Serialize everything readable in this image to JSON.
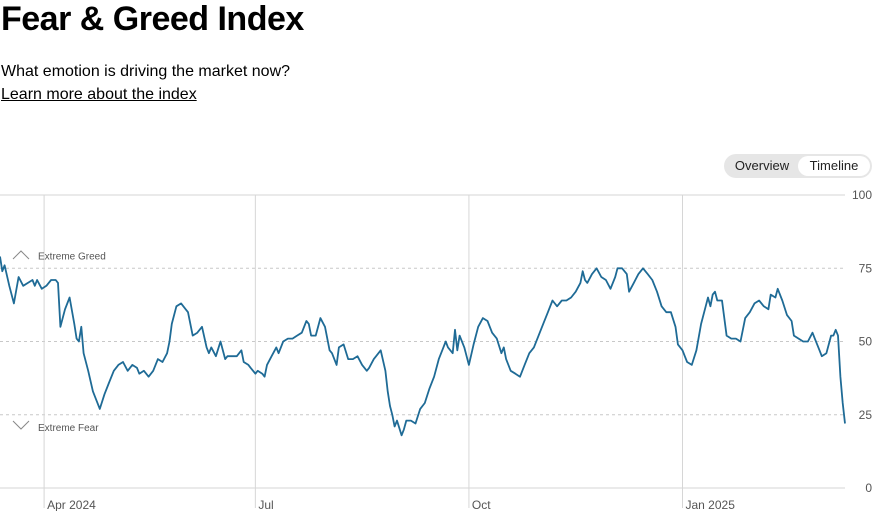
{
  "header": {
    "title": "Fear & Greed Index",
    "subtitle": "What emotion is driving the market now?",
    "learn_more": "Learn more about the index"
  },
  "view_toggle": {
    "options": [
      "Overview",
      "Timeline"
    ],
    "selected": "Timeline"
  },
  "zones": {
    "upper_label": "Extreme Greed",
    "lower_label": "Extreme Fear"
  },
  "colors": {
    "line": "#1f6b96",
    "grid_dashed": "#c8c8c8",
    "grid_solid": "#d6d6d6",
    "toggle_bg": "#e6e6e6"
  },
  "chart_data": {
    "type": "line",
    "x_unit": "day_index",
    "ylim": [
      0,
      100
    ],
    "yticks": [
      0,
      25,
      50,
      75,
      100
    ],
    "xticks": [
      {
        "label": "Apr 2024",
        "x": 19
      },
      {
        "label": "Jul",
        "x": 110
      },
      {
        "label": "Oct",
        "x": 202
      },
      {
        "label": "Jan 2025",
        "x": 294
      }
    ],
    "x_range": [
      0,
      364
    ],
    "series": [
      {
        "values": [
          [
            0,
            79
          ],
          [
            1,
            74
          ],
          [
            2,
            76
          ],
          [
            4,
            69
          ],
          [
            6,
            63
          ],
          [
            8,
            72
          ],
          [
            10,
            69
          ],
          [
            12,
            70
          ],
          [
            14,
            71
          ],
          [
            15,
            69
          ],
          [
            16,
            71
          ],
          [
            18,
            68
          ],
          [
            20,
            69
          ],
          [
            22,
            71
          ],
          [
            24,
            71
          ],
          [
            25,
            70
          ],
          [
            26,
            55
          ],
          [
            28,
            61
          ],
          [
            30,
            65
          ],
          [
            32,
            56
          ],
          [
            33,
            51
          ],
          [
            34,
            50
          ],
          [
            35,
            55
          ],
          [
            36,
            46
          ],
          [
            38,
            40
          ],
          [
            40,
            33
          ],
          [
            41,
            31
          ],
          [
            43,
            27
          ],
          [
            45,
            32
          ],
          [
            47,
            36
          ],
          [
            49,
            40
          ],
          [
            51,
            42
          ],
          [
            53,
            43
          ],
          [
            55,
            40
          ],
          [
            57,
            42
          ],
          [
            59,
            41
          ],
          [
            60,
            39
          ],
          [
            62,
            40
          ],
          [
            64,
            38
          ],
          [
            66,
            40
          ],
          [
            68,
            44
          ],
          [
            70,
            43
          ],
          [
            72,
            46
          ],
          [
            73,
            50
          ],
          [
            74,
            56
          ],
          [
            76,
            62
          ],
          [
            78,
            63
          ],
          [
            80,
            61
          ],
          [
            81,
            60
          ],
          [
            83,
            52
          ],
          [
            85,
            53
          ],
          [
            87,
            55
          ],
          [
            89,
            48
          ],
          [
            90,
            46
          ],
          [
            91,
            48
          ],
          [
            93,
            45
          ],
          [
            95,
            50
          ],
          [
            97,
            44
          ],
          [
            98,
            45
          ],
          [
            100,
            45
          ],
          [
            102,
            45
          ],
          [
            104,
            47
          ],
          [
            105,
            43
          ],
          [
            107,
            42
          ],
          [
            108,
            41
          ],
          [
            110,
            39
          ],
          [
            111,
            40
          ],
          [
            113,
            39
          ],
          [
            114,
            38
          ],
          [
            115,
            42
          ],
          [
            117,
            45
          ],
          [
            119,
            48
          ],
          [
            120,
            46
          ],
          [
            122,
            50
          ],
          [
            124,
            51
          ],
          [
            126,
            51
          ],
          [
            128,
            52
          ],
          [
            130,
            53
          ],
          [
            132,
            57
          ],
          [
            133,
            56
          ],
          [
            134,
            52
          ],
          [
            136,
            52
          ],
          [
            138,
            58
          ],
          [
            140,
            55
          ],
          [
            142,
            47
          ],
          [
            143,
            46
          ],
          [
            145,
            42
          ],
          [
            146,
            48
          ],
          [
            148,
            49
          ],
          [
            150,
            44
          ],
          [
            152,
            44
          ],
          [
            154,
            45
          ],
          [
            156,
            42
          ],
          [
            158,
            40
          ],
          [
            159,
            41
          ],
          [
            161,
            44
          ],
          [
            162,
            45
          ],
          [
            164,
            47
          ],
          [
            166,
            40
          ],
          [
            167,
            33
          ],
          [
            168,
            28
          ],
          [
            169,
            25
          ],
          [
            170,
            21
          ],
          [
            171,
            23
          ],
          [
            173,
            18
          ],
          [
            174,
            20
          ],
          [
            175,
            23
          ],
          [
            177,
            23
          ],
          [
            179,
            22
          ],
          [
            181,
            27
          ],
          [
            183,
            29
          ],
          [
            185,
            34
          ],
          [
            187,
            38
          ],
          [
            189,
            44
          ],
          [
            191,
            48
          ],
          [
            192,
            50
          ],
          [
            193,
            48
          ],
          [
            195,
            46
          ],
          [
            196,
            54
          ],
          [
            197,
            47
          ],
          [
            198,
            52
          ],
          [
            200,
            48
          ],
          [
            201,
            45
          ],
          [
            202,
            42
          ],
          [
            204,
            49
          ],
          [
            206,
            55
          ],
          [
            208,
            58
          ],
          [
            210,
            57
          ],
          [
            212,
            53
          ],
          [
            214,
            51
          ],
          [
            216,
            46
          ],
          [
            217,
            48
          ],
          [
            218,
            44
          ],
          [
            220,
            40
          ],
          [
            222,
            39
          ],
          [
            224,
            38
          ],
          [
            226,
            42
          ],
          [
            228,
            46
          ],
          [
            230,
            48
          ],
          [
            232,
            52
          ],
          [
            234,
            56
          ],
          [
            236,
            60
          ],
          [
            238,
            64
          ],
          [
            240,
            62
          ],
          [
            242,
            64
          ],
          [
            244,
            64
          ],
          [
            246,
            65
          ],
          [
            248,
            67
          ],
          [
            250,
            70
          ],
          [
            251,
            74
          ],
          [
            252,
            71
          ],
          [
            253,
            70
          ],
          [
            255,
            73
          ],
          [
            257,
            75
          ],
          [
            259,
            72
          ],
          [
            261,
            71
          ],
          [
            263,
            68
          ],
          [
            265,
            72
          ],
          [
            266,
            75
          ],
          [
            268,
            75
          ],
          [
            270,
            73
          ],
          [
            271,
            67
          ],
          [
            273,
            70
          ],
          [
            275,
            73
          ],
          [
            277,
            75
          ],
          [
            279,
            73
          ],
          [
            281,
            71
          ],
          [
            283,
            67
          ],
          [
            285,
            62
          ],
          [
            287,
            60
          ],
          [
            289,
            60
          ],
          [
            291,
            55
          ],
          [
            292,
            49
          ],
          [
            294,
            47
          ],
          [
            295,
            45
          ],
          [
            296,
            43
          ],
          [
            298,
            42
          ],
          [
            300,
            47
          ],
          [
            302,
            56
          ],
          [
            304,
            62
          ],
          [
            305,
            65
          ],
          [
            306,
            62
          ],
          [
            307,
            66
          ],
          [
            308,
            67
          ],
          [
            309,
            64
          ],
          [
            311,
            64
          ],
          [
            313,
            52
          ],
          [
            315,
            51
          ],
          [
            317,
            51
          ],
          [
            319,
            50
          ],
          [
            321,
            58
          ],
          [
            323,
            60
          ],
          [
            325,
            63
          ],
          [
            327,
            64
          ],
          [
            329,
            62
          ],
          [
            331,
            61
          ],
          [
            332,
            66
          ],
          [
            334,
            65
          ],
          [
            335,
            68
          ],
          [
            337,
            64
          ],
          [
            339,
            59
          ],
          [
            341,
            57
          ],
          [
            342,
            52
          ],
          [
            344,
            51
          ],
          [
            346,
            50
          ],
          [
            348,
            50
          ],
          [
            350,
            53
          ],
          [
            351,
            51
          ],
          [
            353,
            47
          ],
          [
            354,
            45
          ],
          [
            356,
            46
          ],
          [
            358,
            52
          ],
          [
            359,
            52
          ],
          [
            360,
            54
          ],
          [
            361,
            52
          ],
          [
            362,
            38
          ],
          [
            363,
            29
          ],
          [
            364,
            22
          ]
        ]
      }
    ]
  }
}
